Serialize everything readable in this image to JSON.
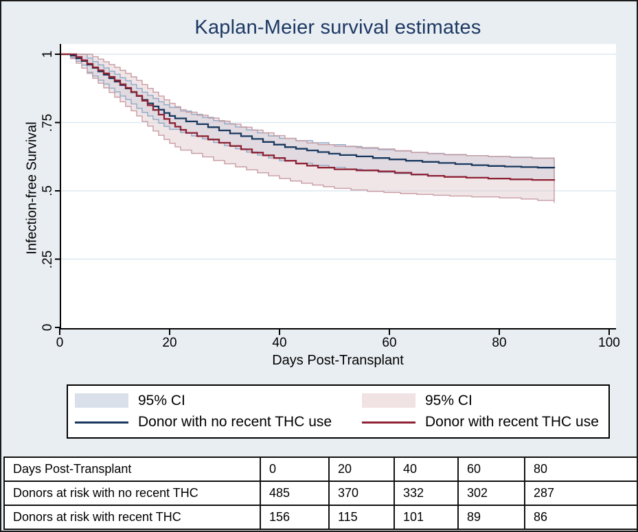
{
  "figure": {
    "title": "Kaplan-Meier survival estimates"
  },
  "chart_data": {
    "type": "line",
    "subtype": "kaplan-meier-step-with-ci-bands",
    "title": "Kaplan-Meier survival estimates",
    "xlabel": "Days Post-Transplant",
    "ylabel": "Infection-free Survival",
    "xlim": [
      0,
      100
    ],
    "ylim": [
      0,
      1
    ],
    "x_ticks": [
      0,
      20,
      40,
      60,
      80,
      100
    ],
    "y_ticks": [
      {
        "value": 0,
        "label": "0"
      },
      {
        "value": 0.25,
        "label": ".25"
      },
      {
        "value": 0.5,
        "label": ".5"
      },
      {
        "value": 0.75,
        "label": ".75"
      },
      {
        "value": 1,
        "label": "1"
      }
    ],
    "grid": "horizontal",
    "legend_position": "bottom",
    "end_day": 90,
    "series": [
      {
        "name": "Donor with no recent THC use",
        "color": "#17375e",
        "steps": [
          [
            0,
            1
          ],
          [
            2,
            0.995
          ],
          [
            3,
            0.985
          ],
          [
            4,
            0.975
          ],
          [
            5,
            0.962
          ],
          [
            6,
            0.95
          ],
          [
            7,
            0.937
          ],
          [
            8,
            0.925
          ],
          [
            9,
            0.912
          ],
          [
            10,
            0.9
          ],
          [
            11,
            0.887
          ],
          [
            12,
            0.875
          ],
          [
            13,
            0.861
          ],
          [
            14,
            0.847
          ],
          [
            15,
            0.833
          ],
          [
            16,
            0.82
          ],
          [
            17,
            0.809
          ],
          [
            18,
            0.797
          ],
          [
            19,
            0.785
          ],
          [
            20,
            0.774
          ],
          [
            21,
            0.765
          ],
          [
            23,
            0.754
          ],
          [
            25,
            0.744
          ],
          [
            27,
            0.733
          ],
          [
            29,
            0.721
          ],
          [
            31,
            0.71
          ],
          [
            33,
            0.7
          ],
          [
            35,
            0.69
          ],
          [
            37,
            0.679
          ],
          [
            39,
            0.669
          ],
          [
            41,
            0.66
          ],
          [
            43,
            0.654
          ],
          [
            45,
            0.648
          ],
          [
            47,
            0.642
          ],
          [
            49,
            0.636
          ],
          [
            51,
            0.631
          ],
          [
            54,
            0.626
          ],
          [
            57,
            0.62
          ],
          [
            60,
            0.615
          ],
          [
            63,
            0.61
          ],
          [
            66,
            0.606
          ],
          [
            69,
            0.602
          ],
          [
            72,
            0.598
          ],
          [
            75,
            0.594
          ],
          [
            78,
            0.591
          ],
          [
            81,
            0.589
          ],
          [
            84,
            0.587
          ],
          [
            87,
            0.585
          ],
          [
            90,
            0.583
          ]
        ]
      },
      {
        "name": "Donor with recent THC use",
        "color": "#8e2133",
        "steps": [
          [
            0,
            1
          ],
          [
            3,
            0.99
          ],
          [
            4,
            0.978
          ],
          [
            5,
            0.965
          ],
          [
            6,
            0.952
          ],
          [
            7,
            0.941
          ],
          [
            8,
            0.93
          ],
          [
            9,
            0.917
          ],
          [
            10,
            0.904
          ],
          [
            11,
            0.89
          ],
          [
            12,
            0.877
          ],
          [
            13,
            0.862
          ],
          [
            14,
            0.848
          ],
          [
            15,
            0.83
          ],
          [
            16,
            0.813
          ],
          [
            17,
            0.796
          ],
          [
            18,
            0.779
          ],
          [
            19,
            0.763
          ],
          [
            20,
            0.748
          ],
          [
            21,
            0.735
          ],
          [
            22,
            0.723
          ],
          [
            23,
            0.712
          ],
          [
            25,
            0.7
          ],
          [
            27,
            0.688
          ],
          [
            29,
            0.676
          ],
          [
            31,
            0.664
          ],
          [
            33,
            0.652
          ],
          [
            35,
            0.64
          ],
          [
            37,
            0.63
          ],
          [
            39,
            0.62
          ],
          [
            41,
            0.61
          ],
          [
            43,
            0.6
          ],
          [
            45,
            0.592
          ],
          [
            47,
            0.585
          ],
          [
            50,
            0.579
          ],
          [
            54,
            0.575
          ],
          [
            58,
            0.571
          ],
          [
            61,
            0.566
          ],
          [
            64,
            0.56
          ],
          [
            67,
            0.555
          ],
          [
            70,
            0.551
          ],
          [
            74,
            0.548
          ],
          [
            78,
            0.545
          ],
          [
            82,
            0.542
          ],
          [
            86,
            0.54
          ],
          [
            90,
            0.537
          ]
        ]
      }
    ],
    "bands": [
      {
        "name": "95% CI (no recent THC)",
        "fill": "#c7d2e2",
        "fill_opacity": 0.55,
        "edge": "#8ea8c6",
        "upper": [
          [
            0,
            1
          ],
          [
            4,
            1
          ],
          [
            5,
            0.986
          ],
          [
            6,
            0.973
          ],
          [
            7,
            0.961
          ],
          [
            8,
            0.95
          ],
          [
            9,
            0.938
          ],
          [
            10,
            0.927
          ],
          [
            11,
            0.914
          ],
          [
            12,
            0.903
          ],
          [
            13,
            0.889
          ],
          [
            14,
            0.875
          ],
          [
            15,
            0.861
          ],
          [
            16,
            0.849
          ],
          [
            17,
            0.838
          ],
          [
            18,
            0.826
          ],
          [
            19,
            0.815
          ],
          [
            20,
            0.805
          ],
          [
            22,
            0.792
          ],
          [
            24,
            0.78
          ],
          [
            26,
            0.769
          ],
          [
            28,
            0.757
          ],
          [
            30,
            0.745
          ],
          [
            32,
            0.734
          ],
          [
            34,
            0.723
          ],
          [
            36,
            0.712
          ],
          [
            38,
            0.701
          ],
          [
            40,
            0.692
          ],
          [
            43,
            0.684
          ],
          [
            46,
            0.676
          ],
          [
            49,
            0.669
          ],
          [
            52,
            0.662
          ],
          [
            55,
            0.656
          ],
          [
            58,
            0.651
          ],
          [
            61,
            0.646
          ],
          [
            64,
            0.641
          ],
          [
            67,
            0.637
          ],
          [
            70,
            0.633
          ],
          [
            74,
            0.629
          ],
          [
            78,
            0.626
          ],
          [
            82,
            0.623
          ],
          [
            86,
            0.62
          ],
          [
            90,
            0.618
          ]
        ],
        "lower": [
          [
            0,
            1
          ],
          [
            2,
            0.988
          ],
          [
            3,
            0.974
          ],
          [
            4,
            0.96
          ],
          [
            5,
            0.934
          ],
          [
            6,
            0.92
          ],
          [
            7,
            0.905
          ],
          [
            8,
            0.891
          ],
          [
            9,
            0.876
          ],
          [
            10,
            0.862
          ],
          [
            11,
            0.847
          ],
          [
            12,
            0.834
          ],
          [
            13,
            0.818
          ],
          [
            14,
            0.802
          ],
          [
            15,
            0.787
          ],
          [
            16,
            0.774
          ],
          [
            17,
            0.761
          ],
          [
            18,
            0.748
          ],
          [
            19,
            0.736
          ],
          [
            20,
            0.725
          ],
          [
            22,
            0.713
          ],
          [
            24,
            0.701
          ],
          [
            26,
            0.69
          ],
          [
            28,
            0.677
          ],
          [
            30,
            0.665
          ],
          [
            32,
            0.654
          ],
          [
            34,
            0.642
          ],
          [
            36,
            0.631
          ],
          [
            38,
            0.62
          ],
          [
            40,
            0.61
          ],
          [
            43,
            0.601
          ],
          [
            46,
            0.593
          ],
          [
            49,
            0.586
          ],
          [
            52,
            0.579
          ],
          [
            55,
            0.573
          ],
          [
            58,
            0.568
          ],
          [
            61,
            0.563
          ],
          [
            64,
            0.558
          ],
          [
            67,
            0.554
          ],
          [
            70,
            0.551
          ],
          [
            74,
            0.547
          ],
          [
            78,
            0.544
          ],
          [
            82,
            0.542
          ],
          [
            86,
            0.54
          ],
          [
            90,
            0.538
          ]
        ]
      },
      {
        "name": "95% CI (recent THC)",
        "fill": "#e2cdd1",
        "fill_opacity": 0.5,
        "edge": "#c89ba2",
        "upper": [
          [
            0,
            1
          ],
          [
            5,
            1
          ],
          [
            6,
            0.991
          ],
          [
            7,
            0.982
          ],
          [
            8,
            0.972
          ],
          [
            9,
            0.962
          ],
          [
            10,
            0.952
          ],
          [
            11,
            0.941
          ],
          [
            12,
            0.93
          ],
          [
            13,
            0.917
          ],
          [
            14,
            0.904
          ],
          [
            15,
            0.889
          ],
          [
            16,
            0.875
          ],
          [
            17,
            0.861
          ],
          [
            18,
            0.847
          ],
          [
            19,
            0.833
          ],
          [
            20,
            0.82
          ],
          [
            21,
            0.808
          ],
          [
            22,
            0.797
          ],
          [
            23,
            0.788
          ],
          [
            25,
            0.777
          ],
          [
            27,
            0.766
          ],
          [
            29,
            0.755
          ],
          [
            31,
            0.744
          ],
          [
            33,
            0.733
          ],
          [
            35,
            0.722
          ],
          [
            37,
            0.712
          ],
          [
            39,
            0.702
          ],
          [
            41,
            0.692
          ],
          [
            43,
            0.683
          ],
          [
            45,
            0.675
          ],
          [
            47,
            0.669
          ],
          [
            50,
            0.663
          ],
          [
            54,
            0.658
          ],
          [
            58,
            0.653
          ],
          [
            61,
            0.647
          ],
          [
            64,
            0.641
          ],
          [
            67,
            0.636
          ],
          [
            70,
            0.632
          ],
          [
            74,
            0.629
          ],
          [
            78,
            0.626
          ],
          [
            82,
            0.622
          ],
          [
            86,
            0.619
          ],
          [
            90,
            0.616
          ]
        ],
        "lower": [
          [
            0,
            1
          ],
          [
            2,
            0.984
          ],
          [
            3,
            0.967
          ],
          [
            4,
            0.949
          ],
          [
            5,
            0.93
          ],
          [
            6,
            0.912
          ],
          [
            7,
            0.894
          ],
          [
            8,
            0.877
          ],
          [
            9,
            0.86
          ],
          [
            10,
            0.843
          ],
          [
            11,
            0.826
          ],
          [
            12,
            0.809
          ],
          [
            13,
            0.793
          ],
          [
            14,
            0.774
          ],
          [
            15,
            0.754
          ],
          [
            16,
            0.737
          ],
          [
            17,
            0.719
          ],
          [
            18,
            0.703
          ],
          [
            19,
            0.688
          ],
          [
            20,
            0.674
          ],
          [
            21,
            0.661
          ],
          [
            22,
            0.649
          ],
          [
            24,
            0.637
          ],
          [
            26,
            0.624
          ],
          [
            28,
            0.611
          ],
          [
            30,
            0.599
          ],
          [
            32,
            0.588
          ],
          [
            34,
            0.577
          ],
          [
            36,
            0.566
          ],
          [
            38,
            0.555
          ],
          [
            40,
            0.545
          ],
          [
            42,
            0.536
          ],
          [
            44,
            0.528
          ],
          [
            46,
            0.521
          ],
          [
            48,
            0.515
          ],
          [
            50,
            0.509
          ],
          [
            53,
            0.503
          ],
          [
            56,
            0.498
          ],
          [
            59,
            0.494
          ],
          [
            62,
            0.49
          ],
          [
            65,
            0.487
          ],
          [
            68,
            0.484
          ],
          [
            71,
            0.481
          ],
          [
            75,
            0.478
          ],
          [
            80,
            0.474
          ],
          [
            84,
            0.47
          ],
          [
            87,
            0.465
          ],
          [
            90,
            0.456
          ]
        ]
      }
    ]
  },
  "legend": {
    "left": {
      "ci_label": "95% CI",
      "ci_color": "#dae0ea",
      "series_label": "Donor with no recent THC use",
      "line_color": "#17375e"
    },
    "right": {
      "ci_label": "95% CI",
      "ci_color": "#f1e2e3",
      "series_label": "Donor with recent THC use",
      "line_color": "#8e2133"
    }
  },
  "risk_table": {
    "rows": [
      {
        "label": "Days Post-Transplant",
        "values": [
          "0",
          "20",
          "40",
          "60",
          "80"
        ]
      },
      {
        "label": "Donors at risk with no recent THC",
        "values": [
          "485",
          "370",
          "332",
          "302",
          "287"
        ]
      },
      {
        "label": "Donors at risk with recent THC",
        "values": [
          "156",
          "115",
          "101",
          "89",
          "86"
        ]
      }
    ]
  }
}
